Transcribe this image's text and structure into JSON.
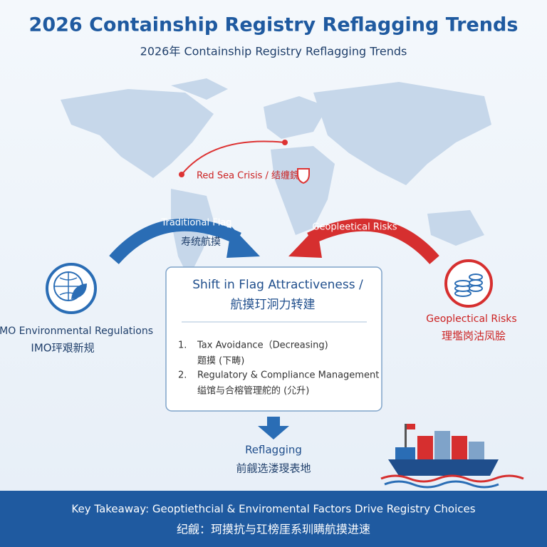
{
  "header": {
    "title": "2026 Containship Registry Reflagging Trends",
    "subtitle": "2026年 Containship Registry Reflagging Trends"
  },
  "map": {
    "crisis_label": "Red Sea Crisis / 结缠鋎"
  },
  "arrows": {
    "left": {
      "label": "Traditional Flag",
      "label_cn": "寿统航摸"
    },
    "right": {
      "label": "Geopleetical Risks"
    }
  },
  "left_factor": {
    "label": "IMO Environmental Regulations",
    "label_cn": "IMO玶艰新规"
  },
  "right_factor": {
    "label": "Geoplectical Risks",
    "label_cn": "理壏岗沽凤脍"
  },
  "center_box": {
    "title": "Shift in Flag Attractiveness /",
    "title_cn": "航摸玎泂力转建",
    "items": [
      {
        "number": "1.",
        "text": "Tax Avoidance（Decreasing)",
        "text_cn": "题摸 (下畴)"
      },
      {
        "number": "2.",
        "text": "Regulatory & Compliance Management",
        "text_cn": "缢馆与合榕管理舵的 (尣升)"
      }
    ]
  },
  "result": {
    "label": "Reflagging",
    "label_cn": "前觎选溇琝表地"
  },
  "footer": {
    "text": "Key Takeaway: Geoptiethcial & Enviromental Factors Drive Registry Choices",
    "text_cn": "纪觎：珂摸抗与玒榜厓系玔瞒航摸进速"
  }
}
